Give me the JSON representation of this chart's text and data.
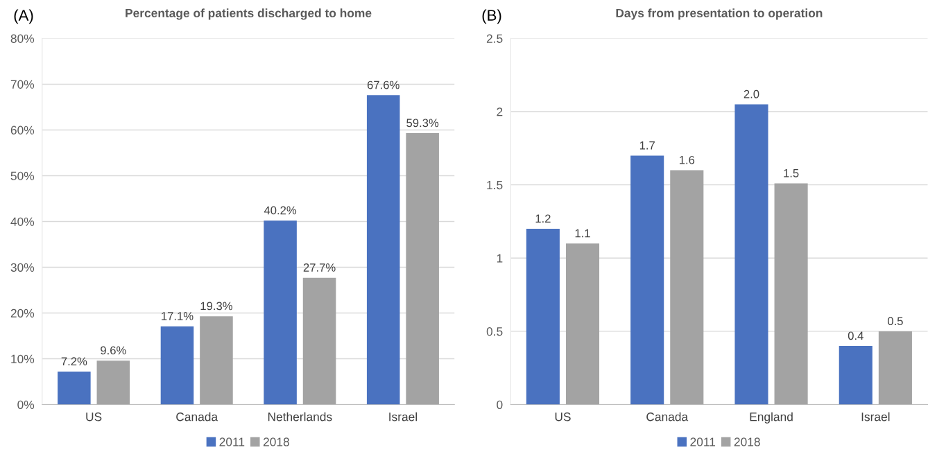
{
  "chart_data": [
    {
      "type": "bar",
      "title": "Percentage of patients discharged to home",
      "annotations": [
        "(A)"
      ],
      "categories": [
        "US",
        "Canada",
        "Netherlands",
        "Israel"
      ],
      "series": [
        {
          "name": "2011",
          "color": "#4a72c0",
          "values": [
            7.2,
            17.1,
            40.2,
            67.6
          ],
          "value_labels": [
            "7.2%",
            "17.1%",
            "40.2%",
            "67.6%"
          ]
        },
        {
          "name": "2018",
          "color": "#a3a3a3",
          "values": [
            9.6,
            19.3,
            27.7,
            59.3
          ],
          "value_labels": [
            "9.6%",
            "19.3%",
            "27.7%",
            "59.3%"
          ]
        }
      ],
      "ylim": [
        0,
        80
      ],
      "yticks": [
        {
          "value": 0,
          "label": "0%"
        },
        {
          "value": 10,
          "label": "10%"
        },
        {
          "value": 20,
          "label": "20%"
        },
        {
          "value": 30,
          "label": "30%"
        },
        {
          "value": 40,
          "label": "40%"
        },
        {
          "value": 50,
          "label": "50%"
        },
        {
          "value": 60,
          "label": "60%"
        },
        {
          "value": 70,
          "label": "70%"
        },
        {
          "value": 80,
          "label": "80%"
        }
      ],
      "grid": "y",
      "legend": "bottom"
    },
    {
      "type": "bar",
      "title": "Days from presentation to operation",
      "annotations": [
        "(B)"
      ],
      "categories": [
        "US",
        "Canada",
        "England",
        "Israel"
      ],
      "series": [
        {
          "name": "2011",
          "color": "#4a72c0",
          "values": [
            1.2,
            1.7,
            2.05,
            0.4
          ],
          "value_labels": [
            "1.2",
            "1.7",
            "2.0",
            "0.4"
          ]
        },
        {
          "name": "2018",
          "color": "#a3a3a3",
          "values": [
            1.1,
            1.6,
            1.51,
            0.5
          ],
          "value_labels": [
            "1.1",
            "1.6",
            "1.5",
            "0.5"
          ]
        }
      ],
      "ylim": [
        0,
        2.5
      ],
      "yticks": [
        0,
        0.5,
        1,
        1.5,
        2,
        2.5
      ],
      "grid": "y",
      "legend": "bottom"
    }
  ]
}
